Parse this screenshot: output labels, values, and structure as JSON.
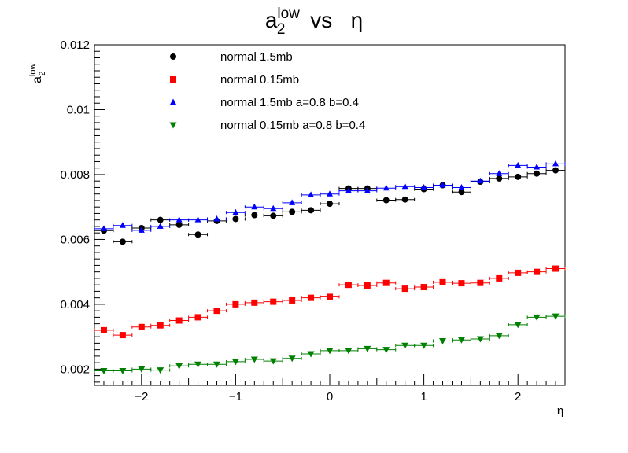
{
  "chart_data": {
    "type": "scatter",
    "title": {
      "base": "a",
      "sub": "2",
      "sup": "low",
      "rest": " vs   η"
    },
    "ylabel": {
      "base": "a",
      "sub": "2",
      "sup": "low"
    },
    "xlabel": "η",
    "xlim": [
      -2.5,
      2.5
    ],
    "ylim": [
      0.0015,
      0.012
    ],
    "xticks": [
      -2,
      -1,
      0,
      1,
      2
    ],
    "xtick_labels": [
      "−2",
      "−1",
      "0",
      "1",
      "2"
    ],
    "yticks": [
      0.002,
      0.004,
      0.006,
      0.008,
      0.01,
      0.012
    ],
    "ytick_labels": [
      "0.002",
      "0.004",
      "0.006",
      "0.008",
      "0.01",
      "0.012"
    ],
    "x": [
      -2.4,
      -2.2,
      -2.0,
      -1.8,
      -1.6,
      -1.4,
      -1.2,
      -1.0,
      -0.8,
      -0.6,
      -0.4,
      -0.2,
      0.0,
      0.2,
      0.4,
      0.6,
      0.8,
      1.0,
      1.2,
      1.4,
      1.6,
      1.8,
      2.0,
      2.2,
      2.4
    ],
    "x_error": 0.1,
    "grid": false,
    "legend_position": "top-left",
    "series": [
      {
        "name": "normal 1.5mb",
        "marker": "circle",
        "color": "#000000",
        "values": [
          0.00627,
          0.00593,
          0.00635,
          0.0066,
          0.00645,
          0.00615,
          0.00657,
          0.00663,
          0.00675,
          0.00673,
          0.00685,
          0.0069,
          0.0071,
          0.00757,
          0.00757,
          0.00721,
          0.00723,
          0.00755,
          0.00767,
          0.00746,
          0.00778,
          0.00788,
          0.00793,
          0.00803,
          0.00813
        ]
      },
      {
        "name": "normal 0.15mb",
        "marker": "square",
        "color": "#ff0000",
        "values": [
          0.0032,
          0.00305,
          0.0033,
          0.00335,
          0.0035,
          0.0036,
          0.0038,
          0.004,
          0.00405,
          0.00408,
          0.00412,
          0.0042,
          0.00423,
          0.0046,
          0.00458,
          0.00466,
          0.00448,
          0.00453,
          0.00468,
          0.00465,
          0.00466,
          0.0048,
          0.00497,
          0.005,
          0.0051
        ]
      },
      {
        "name": "normal 1.5mb a=0.8 b=0.4",
        "marker": "triangle-up",
        "color": "#0000ff",
        "values": [
          0.00633,
          0.00643,
          0.00628,
          0.0064,
          0.0066,
          0.0066,
          0.00663,
          0.00683,
          0.007,
          0.00695,
          0.00713,
          0.00737,
          0.0074,
          0.0075,
          0.0075,
          0.00758,
          0.00763,
          0.0076,
          0.00767,
          0.0076,
          0.0078,
          0.00803,
          0.00828,
          0.00823,
          0.00833
        ]
      },
      {
        "name": "normal 0.15mb a=0.8 b=0.4",
        "marker": "triangle-down",
        "color": "#008000",
        "values": [
          0.00195,
          0.00195,
          0.002,
          0.00197,
          0.0021,
          0.00215,
          0.00215,
          0.00223,
          0.0023,
          0.00225,
          0.00233,
          0.00247,
          0.00257,
          0.00257,
          0.00263,
          0.0026,
          0.00273,
          0.00273,
          0.00287,
          0.0029,
          0.00293,
          0.00303,
          0.00337,
          0.0036,
          0.00363
        ]
      }
    ]
  }
}
